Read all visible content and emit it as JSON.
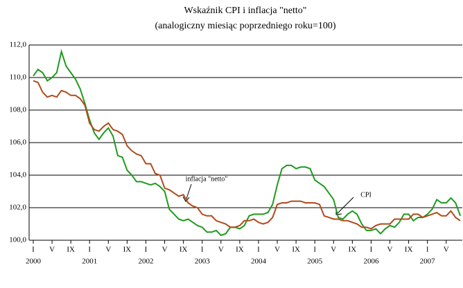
{
  "chart_data": {
    "type": "line",
    "title": "Wskaźnik CPI i inflacja \"netto\"",
    "subtitle": "(analogiczny miesiąc poprzedniego roku=100)",
    "categories": [
      "I",
      null,
      null,
      null,
      "V",
      null,
      null,
      null,
      "IX",
      null,
      null,
      null,
      "I",
      null,
      null,
      null,
      "V",
      null,
      null,
      null,
      "IX",
      null,
      null,
      null,
      "I",
      null,
      null,
      null,
      "V",
      null,
      null,
      null,
      "IX",
      null,
      null,
      null,
      "I",
      null,
      null,
      null,
      "V",
      null,
      null,
      null,
      "IX",
      null,
      null,
      null,
      "I",
      null,
      null,
      null,
      "V",
      null,
      null,
      null,
      "IX",
      null,
      null,
      null,
      "I",
      null,
      null,
      null,
      "V",
      null,
      null,
      null,
      "IX",
      null,
      null,
      null,
      "I",
      null,
      null,
      null,
      "V",
      null,
      null,
      null,
      "IX",
      null,
      null,
      null,
      "I",
      null,
      null,
      null,
      "V",
      null,
      null,
      null
    ],
    "years": [
      "2000",
      "2001",
      "2002",
      "2003",
      "2004",
      "2005",
      "2006",
      "2007"
    ],
    "series": [
      {
        "name": "CPI",
        "color": "#1e9a1e",
        "values": [
          110.1,
          110.5,
          110.3,
          109.8,
          110.0,
          110.3,
          111.6,
          110.7,
          110.3,
          109.9,
          109.3,
          108.4,
          107.4,
          106.6,
          106.2,
          106.6,
          106.9,
          106.4,
          105.2,
          105.1,
          104.3,
          104.0,
          103.6,
          103.6,
          103.5,
          103.4,
          103.5,
          103.3,
          103.0,
          101.9,
          101.6,
          101.3,
          101.2,
          101.3,
          101.1,
          100.9,
          100.8,
          100.5,
          100.5,
          100.6,
          100.3,
          100.4,
          100.8,
          100.8,
          100.7,
          100.9,
          101.5,
          101.6,
          101.6,
          101.6,
          101.7,
          102.2,
          103.4,
          104.4,
          104.6,
          104.6,
          104.4,
          104.5,
          104.5,
          104.4,
          103.7,
          103.5,
          103.3,
          102.9,
          102.5,
          101.4,
          101.3,
          101.6,
          101.8,
          101.6,
          101.0,
          100.6,
          100.6,
          100.7,
          100.4,
          100.7,
          100.9,
          100.8,
          101.1,
          101.6,
          101.6,
          101.2,
          101.4,
          101.4,
          101.6,
          101.9,
          102.5,
          102.3,
          102.3,
          102.6,
          102.3,
          101.5
        ]
      },
      {
        "name": "inflacja \"netto\"",
        "color": "#b04a1c",
        "values": [
          109.8,
          109.7,
          109.1,
          108.8,
          108.9,
          108.8,
          109.2,
          109.1,
          108.9,
          108.9,
          108.7,
          108.3,
          107.2,
          106.8,
          106.7,
          107.0,
          107.2,
          106.8,
          106.7,
          106.5,
          105.8,
          105.5,
          105.3,
          105.2,
          104.7,
          104.7,
          104.1,
          104.0,
          103.2,
          103.1,
          102.9,
          102.7,
          102.8,
          102.3,
          102.1,
          102.0,
          101.6,
          101.5,
          101.5,
          101.2,
          101.1,
          101.0,
          100.8,
          100.8,
          100.9,
          101.2,
          101.2,
          101.3,
          101.1,
          101.0,
          101.1,
          101.4,
          102.2,
          102.3,
          102.3,
          102.4,
          102.4,
          102.4,
          102.3,
          102.3,
          102.3,
          102.2,
          101.5,
          101.4,
          101.3,
          101.3,
          101.2,
          101.2,
          101.1,
          101.0,
          100.8,
          100.8,
          100.7,
          100.9,
          101.0,
          101.0,
          101.0,
          101.3,
          101.3,
          101.3,
          101.3,
          101.6,
          101.6,
          101.4,
          101.5,
          101.6,
          101.7,
          101.5,
          101.5,
          101.8,
          101.4,
          101.2
        ]
      }
    ],
    "ylim": [
      100,
      112
    ],
    "yticks": [
      {
        "value": 100,
        "label": "100,0"
      },
      {
        "value": 102,
        "label": "102,0"
      },
      {
        "value": 104,
        "label": "104,0"
      },
      {
        "value": 106,
        "label": "106,0"
      },
      {
        "value": 108,
        "label": "108,0"
      },
      {
        "value": 110,
        "label": "110,0"
      },
      {
        "value": 112,
        "label": "112,0"
      }
    ],
    "grid": true
  }
}
